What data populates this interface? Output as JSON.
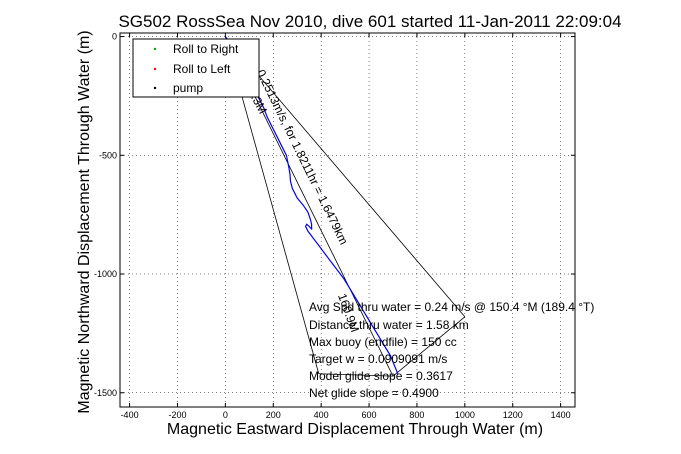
{
  "chart_data": {
    "type": "line",
    "title": "SG502 RossSea Nov 2010, dive 601 started 11-Jan-2011 22:09:04",
    "xlabel": "Magnetic Eastward Displacement Through Water (m)",
    "ylabel": "Magnetic Northward Displacement Through Water (m)",
    "xlim": [
      -440,
      1460
    ],
    "ylim": [
      -1560,
      15
    ],
    "xticks": [
      -400,
      -200,
      0,
      200,
      400,
      600,
      800,
      1000,
      1200,
      1400
    ],
    "yticks": [
      0,
      -500,
      -1000,
      -1500
    ],
    "xtick_labels": [
      "-400",
      "-200",
      "0",
      "200",
      "400",
      "600",
      "800",
      "1000",
      "1200",
      "1400"
    ],
    "ytick_labels": [
      "0",
      "-500",
      "-1000",
      "-1500"
    ],
    "grid": true,
    "legend": {
      "placement": "top-left",
      "entries": [
        {
          "label": "Roll to Right",
          "color": "#00aa00"
        },
        {
          "label": "Roll to Left",
          "color": "#ff0000"
        },
        {
          "label": "pump",
          "color": "#000000"
        }
      ]
    },
    "series": [
      {
        "color": "#0000ff",
        "x": [
          0,
          5,
          10,
          15,
          20,
          30,
          45,
          60,
          80,
          100,
          120,
          140,
          160,
          175,
          195,
          215,
          235,
          255,
          265,
          270,
          272,
          280,
          300,
          325,
          345,
          355,
          360,
          360,
          350,
          340,
          335,
          345,
          360,
          375,
          390,
          405,
          420,
          435,
          450,
          465,
          480,
          495,
          510,
          525,
          540,
          555,
          570,
          585,
          600,
          615,
          630,
          645,
          660,
          675,
          690,
          700,
          710,
          720
        ],
        "y": [
          0,
          -10,
          -20,
          -30,
          -40,
          -60,
          -80,
          -100,
          -140,
          -180,
          -220,
          -260,
          -300,
          -340,
          -380,
          -420,
          -460,
          -500,
          -550,
          -580,
          -610,
          -640,
          -680,
          -710,
          -740,
          -770,
          -790,
          -810,
          -800,
          -790,
          -800,
          -820,
          -840,
          -860,
          -880,
          -900,
          -920,
          -940,
          -960,
          -980,
          -1000,
          -1020,
          -1045,
          -1070,
          -1095,
          -1120,
          -1145,
          -1170,
          -1195,
          -1220,
          -1245,
          -1270,
          -1295,
          -1320,
          -1345,
          -1370,
          -1395,
          -1420
        ]
      }
    ],
    "wedge_lines": [
      {
        "from": [
          0,
          0
        ],
        "to": [
          1000,
          -1180
        ]
      },
      {
        "from": [
          0,
          0
        ],
        "to": [
          390,
          -1420
        ]
      },
      {
        "from": [
          0,
          0
        ],
        "to": [
          700,
          -1430
        ]
      },
      {
        "from": [
          390,
          -1420
        ],
        "to": [
          700,
          -1430
        ]
      },
      {
        "from": [
          700,
          -1430
        ],
        "to": [
          1000,
          -1180
        ]
      }
    ],
    "annotations": [
      {
        "text": "0.2513m/s, for 1.8211hr = 1.6479km",
        "x": 130,
        "y": -150,
        "angle_deg": 64
      },
      {
        "text": "85.3M",
        "x": 80,
        "y": -205,
        "angle_deg": 62
      },
      {
        "text": "160.9M",
        "x": 470,
        "y": -1090,
        "angle_deg": 70
      }
    ],
    "stats": [
      "Avg Spd thru water = 0.24 m/s @ 150.4   °M (189.4 °T)",
      "Distance thru water = 1.58 km",
      "Max buoy (endfile) = 150 cc",
      "Target w = 0.0909091 m/s",
      "Model glide slope = 0.3617",
      "Net glide slope = 0.4900"
    ]
  }
}
